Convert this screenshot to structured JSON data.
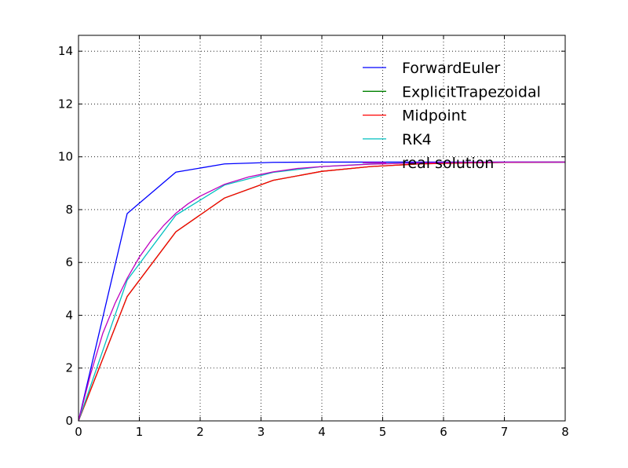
{
  "chart_data": {
    "type": "line",
    "title": "",
    "xlabel": "",
    "ylabel": "",
    "xlim": [
      0,
      8
    ],
    "ylim": [
      0,
      14.6
    ],
    "xticks": [
      0,
      1,
      2,
      3,
      4,
      5,
      6,
      7,
      8
    ],
    "yticks": [
      0,
      2,
      4,
      6,
      8,
      10,
      12,
      14
    ],
    "grid": true,
    "legend_position": "top-right",
    "series": [
      {
        "name": "ForwardEuler",
        "color": "#0000ff",
        "x": [
          0,
          0.8,
          1.6,
          2.4,
          3.2,
          4.0,
          4.8,
          5.6,
          6.4,
          7.2,
          8.0
        ],
        "y": [
          0,
          7.85,
          9.42,
          9.73,
          9.79,
          9.8,
          9.8,
          9.8,
          9.8,
          9.8,
          9.8
        ]
      },
      {
        "name": "ExplicitTrapezoidal",
        "color": "#008000",
        "x": [
          0,
          0.8,
          1.6,
          2.4,
          3.2,
          4.0,
          4.8,
          5.6,
          6.4,
          7.2,
          8.0
        ],
        "y": [
          0,
          4.71,
          7.16,
          8.44,
          9.11,
          9.45,
          9.63,
          9.73,
          9.77,
          9.79,
          9.8
        ]
      },
      {
        "name": "Midpoint",
        "color": "#ff0000",
        "x": [
          0,
          0.8,
          1.6,
          2.4,
          3.2,
          4.0,
          4.8,
          5.6,
          6.4,
          7.2,
          8.0
        ],
        "y": [
          0,
          4.71,
          7.16,
          8.44,
          9.11,
          9.45,
          9.63,
          9.73,
          9.77,
          9.79,
          9.8
        ]
      },
      {
        "name": "RK4",
        "color": "#00bfbf",
        "x": [
          0,
          0.8,
          1.6,
          2.4,
          3.2,
          4.0,
          4.8,
          5.6,
          6.4,
          7.2,
          8.0
        ],
        "y": [
          0,
          5.33,
          7.79,
          8.93,
          9.41,
          9.63,
          9.73,
          9.77,
          9.79,
          9.8,
          9.8
        ]
      },
      {
        "name": "real solution",
        "color": "#bf00bf",
        "x": [
          0,
          0.2,
          0.4,
          0.6,
          0.8,
          1.0,
          1.2,
          1.4,
          1.6,
          1.8,
          2.0,
          2.4,
          2.8,
          3.2,
          3.6,
          4.0,
          4.8,
          5.6,
          6.4,
          7.2,
          8.0
        ],
        "y": [
          0,
          1.78,
          3.32,
          4.45,
          5.4,
          6.2,
          6.85,
          7.4,
          7.86,
          8.22,
          8.51,
          8.96,
          9.24,
          9.43,
          9.56,
          9.63,
          9.72,
          9.77,
          9.79,
          9.8,
          9.8
        ]
      }
    ]
  }
}
